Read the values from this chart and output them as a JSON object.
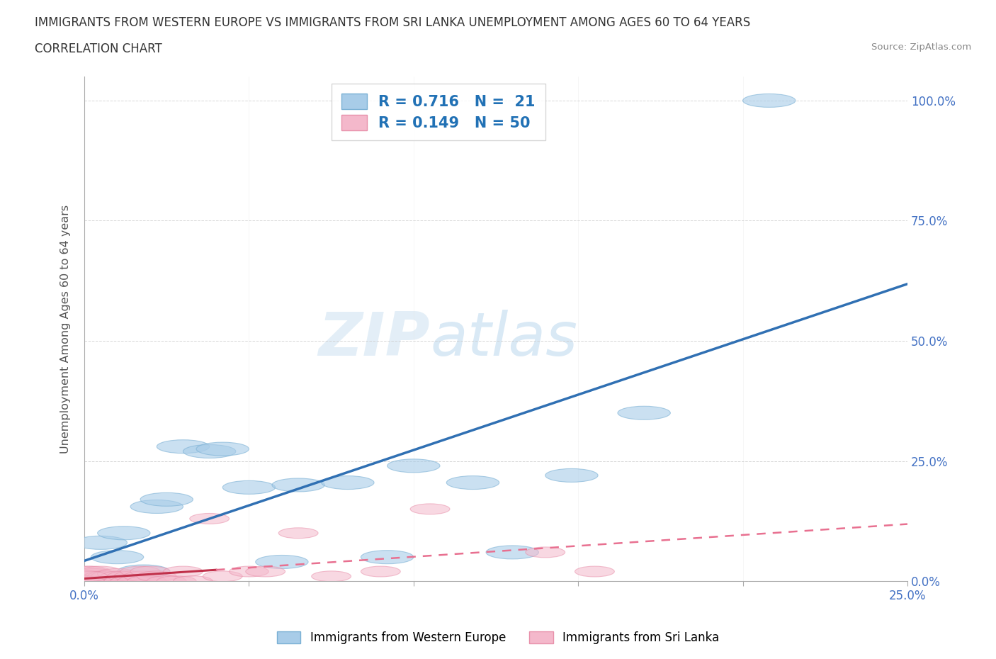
{
  "title_line1": "IMMIGRANTS FROM WESTERN EUROPE VS IMMIGRANTS FROM SRI LANKA UNEMPLOYMENT AMONG AGES 60 TO 64 YEARS",
  "title_line2": "CORRELATION CHART",
  "source": "Source: ZipAtlas.com",
  "ylabel_label": "Unemployment Among Ages 60 to 64 years",
  "xlim": [
    0,
    0.25
  ],
  "ylim": [
    0,
    1.05
  ],
  "x_ticks": [
    0.0,
    0.05,
    0.1,
    0.15,
    0.2,
    0.25
  ],
  "y_ticks": [
    0.0,
    0.25,
    0.5,
    0.75,
    1.0
  ],
  "watermark": "ZIPAtlas",
  "blue_color": "#a8cce8",
  "blue_edge_color": "#7ab0d4",
  "pink_color": "#f4b8cb",
  "pink_edge_color": "#e890aa",
  "blue_line_color": "#3070b3",
  "pink_line_solid_color": "#c0304a",
  "pink_line_dash_color": "#e87090",
  "legend_blue_label": "R = 0.716   N =  21",
  "legend_pink_label": "R = 0.149   N = 50",
  "blue_x": [
    0.001,
    0.005,
    0.01,
    0.012,
    0.018,
    0.022,
    0.025,
    0.03,
    0.038,
    0.042,
    0.05,
    0.06,
    0.065,
    0.08,
    0.092,
    0.1,
    0.118,
    0.13,
    0.148,
    0.17,
    0.208
  ],
  "blue_y": [
    0.005,
    0.08,
    0.05,
    0.1,
    0.02,
    0.155,
    0.17,
    0.28,
    0.27,
    0.275,
    0.195,
    0.04,
    0.2,
    0.205,
    0.05,
    0.24,
    0.205,
    0.06,
    0.22,
    0.35,
    1.0
  ],
  "pink_x": [
    0.0,
    0.0,
    0.001,
    0.001,
    0.001,
    0.002,
    0.002,
    0.002,
    0.003,
    0.003,
    0.004,
    0.004,
    0.005,
    0.005,
    0.006,
    0.006,
    0.007,
    0.007,
    0.008,
    0.008,
    0.009,
    0.01,
    0.01,
    0.011,
    0.012,
    0.013,
    0.014,
    0.015,
    0.016,
    0.017,
    0.018,
    0.019,
    0.02,
    0.022,
    0.025,
    0.028,
    0.03,
    0.033,
    0.038,
    0.042,
    0.05,
    0.055,
    0.065,
    0.075,
    0.09,
    0.105,
    0.14,
    0.155,
    0.0,
    0.001
  ],
  "pink_y": [
    0.0,
    0.005,
    0.0,
    0.01,
    0.02,
    0.0,
    0.01,
    0.02,
    0.0,
    0.015,
    0.0,
    0.01,
    0.0,
    0.02,
    0.01,
    0.0,
    0.0,
    0.01,
    0.0,
    0.01,
    0.0,
    0.0,
    0.015,
    0.01,
    0.0,
    0.01,
    0.0,
    0.01,
    0.0,
    0.02,
    0.01,
    0.0,
    0.02,
    0.01,
    0.0,
    0.0,
    0.02,
    0.0,
    0.13,
    0.01,
    0.02,
    0.02,
    0.1,
    0.01,
    0.02,
    0.15,
    0.06,
    0.02,
    0.0,
    0.01
  ]
}
